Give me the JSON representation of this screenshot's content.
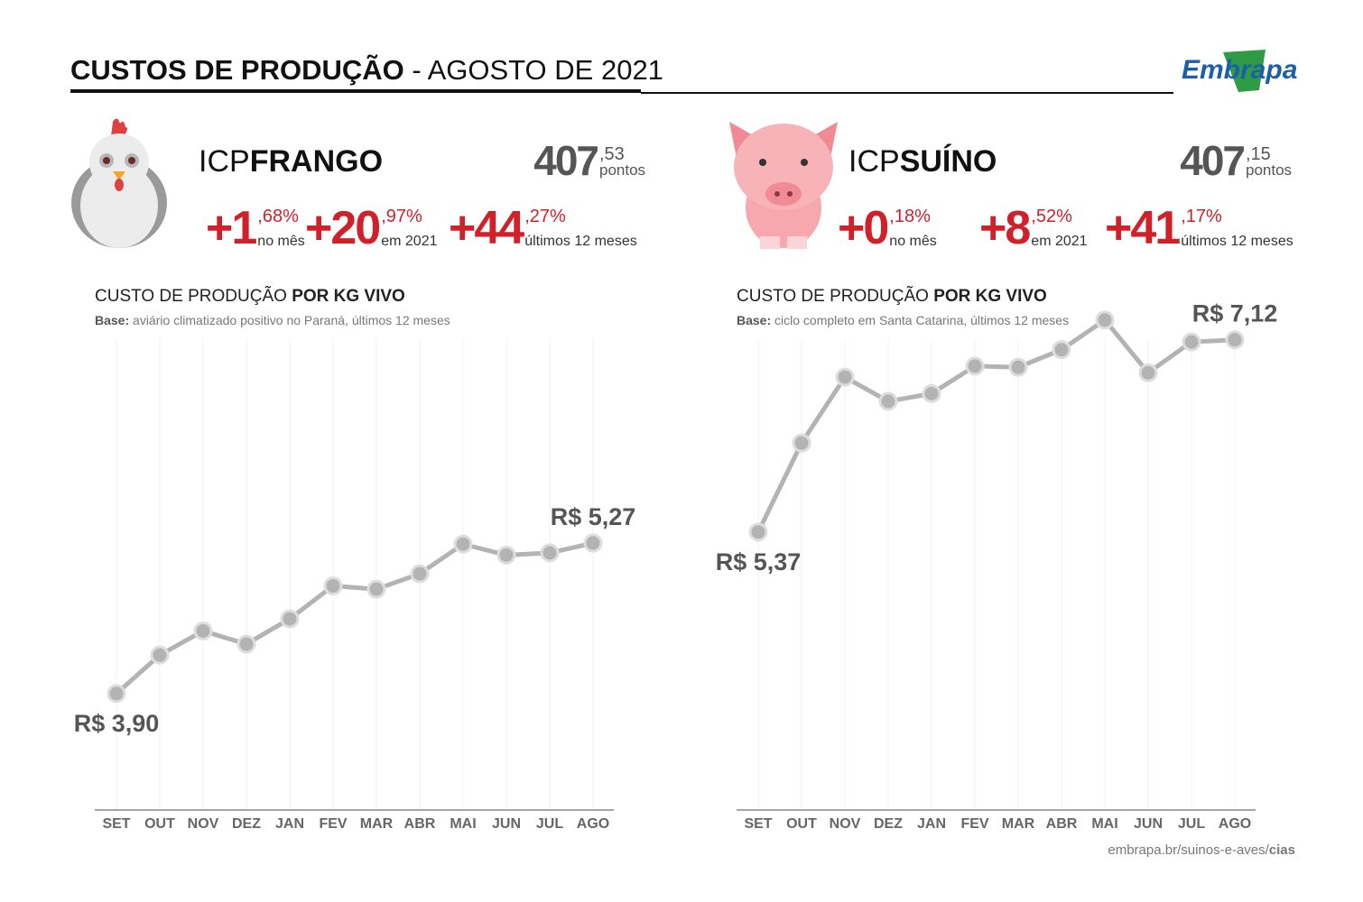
{
  "header": {
    "title_bold": "CUSTOS DE PRODUÇÃO",
    "title_rest": "- AGOSTO DE 2021",
    "logo": "Embrapa"
  },
  "indices": [
    {
      "prefix": "ICP",
      "name": "FRANGO",
      "points_int": "407",
      "points_dec": ",53",
      "points_unit": "pontos",
      "changes": [
        {
          "int": "+1",
          "dec": ",68%",
          "label": "no mês"
        },
        {
          "int": "+20",
          "dec": ",97%",
          "label": "em 2021"
        },
        {
          "int": "+44",
          "dec": ",27%",
          "label": "últimos 12 meses"
        }
      ]
    },
    {
      "prefix": "ICP",
      "name": "SUÍNO",
      "points_int": "407",
      "points_dec": ",15",
      "points_unit": "pontos",
      "changes": [
        {
          "int": "+0",
          "dec": ",18%",
          "label": "no mês"
        },
        {
          "int": "+8",
          "dec": ",52%",
          "label": "em 2021"
        },
        {
          "int": "+41",
          "dec": ",17%",
          "label": "últimos 12 meses"
        }
      ]
    }
  ],
  "chart_data": [
    {
      "type": "line",
      "title": "CUSTO DE PRODUÇÃO",
      "title_emphasis": "POR KG VIVO",
      "subtitle_label": "Base:",
      "subtitle": "aviário climatizado positivo no Paraná, últimos 12 meses",
      "categories": [
        "SET",
        "OUT",
        "NOV",
        "DEZ",
        "JAN",
        "FEV",
        "MAR",
        "ABR",
        "MAI",
        "JUN",
        "JUL",
        "AGO"
      ],
      "values": [
        3.9,
        4.25,
        4.47,
        4.35,
        4.58,
        4.88,
        4.85,
        4.99,
        5.26,
        5.16,
        5.18,
        5.27
      ],
      "value_labels": [
        "R$ 3,90",
        null,
        null,
        null,
        null,
        null,
        null,
        null,
        null,
        null,
        null,
        "R$ 5,27"
      ],
      "color": "#b3b3b3",
      "ylim": [
        2.84,
        7.45
      ]
    },
    {
      "type": "line",
      "title": "CUSTO DE PRODUÇÃO",
      "title_emphasis": "POR KG VIVO",
      "subtitle_label": "Base:",
      "subtitle": "ciclo completo em Santa Catarina, últimos 12 meses",
      "categories": [
        "SET",
        "OUT",
        "NOV",
        "DEZ",
        "JAN",
        "FEV",
        "MAR",
        "ABR",
        "MAI",
        "JUN",
        "JUL",
        "AGO"
      ],
      "values": [
        5.37,
        6.18,
        6.78,
        6.56,
        6.63,
        6.88,
        6.87,
        7.03,
        7.3,
        6.82,
        7.1,
        7.12
      ],
      "value_labels": [
        "R$ 5,37",
        null,
        null,
        null,
        null,
        null,
        null,
        null,
        null,
        null,
        null,
        "R$ 7,12"
      ],
      "color": "#b3b3b3",
      "ylim": [
        2.84,
        7.45
      ]
    }
  ],
  "footer": {
    "url": "embrapa.br/suinos-e-aves/",
    "url_bold": "cias"
  }
}
